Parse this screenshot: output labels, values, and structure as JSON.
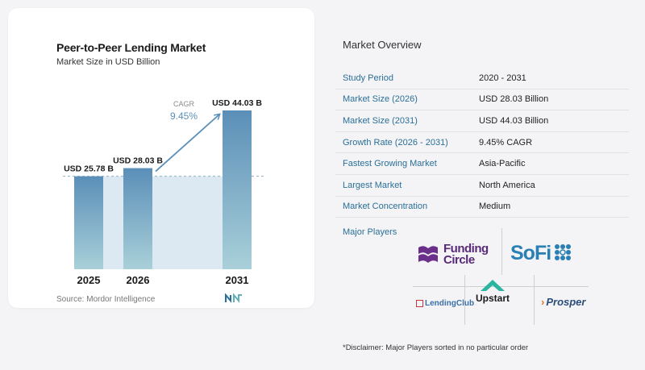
{
  "chart_data": {
    "type": "bar",
    "title": "Peer-to-Peer Lending Market",
    "subtitle": "Market Size in USD Billion",
    "categories": [
      "2025",
      "2026",
      "2031"
    ],
    "values": [
      25.78,
      28.03,
      44.03
    ],
    "value_labels": [
      "USD 25.78 B",
      "USD 28.03 B",
      "USD 44.03 B"
    ],
    "cagr_label": "CAGR",
    "cagr_value": "9.45%",
    "ylim": [
      0,
      44.03
    ],
    "colors": {
      "bar_top": "#5b8fb8",
      "bar_bottom": "#a9d0d9",
      "fill_band": "#dde9f2",
      "arrow": "#5b8fb8"
    }
  },
  "source": "Source: Mordor Intelligence",
  "overview": {
    "title": "Market Overview",
    "rows": [
      {
        "key": "Study Period",
        "value": "2020 - 2031"
      },
      {
        "key": "Market Size (2026)",
        "value": "USD 28.03 Billion"
      },
      {
        "key": "Market Size (2031)",
        "value": "USD 44.03 Billion"
      },
      {
        "key": "Growth Rate (2026 - 2031)",
        "value": "9.45% CAGR"
      },
      {
        "key": "Fastest Growing Market",
        "value": "Asia-Pacific"
      },
      {
        "key": "Largest Market",
        "value": "North America"
      },
      {
        "key": "Market Concentration",
        "value": "Medium"
      }
    ]
  },
  "players": {
    "title": "Major Players",
    "funding_circle": [
      "Funding",
      "Circle"
    ],
    "sofi": "SoFi",
    "lendingclub": "LendingClub",
    "upstart": "Upstart",
    "prosper": "Prosper"
  },
  "disclaimer": "*Disclaimer: Major Players sorted in no particular order"
}
